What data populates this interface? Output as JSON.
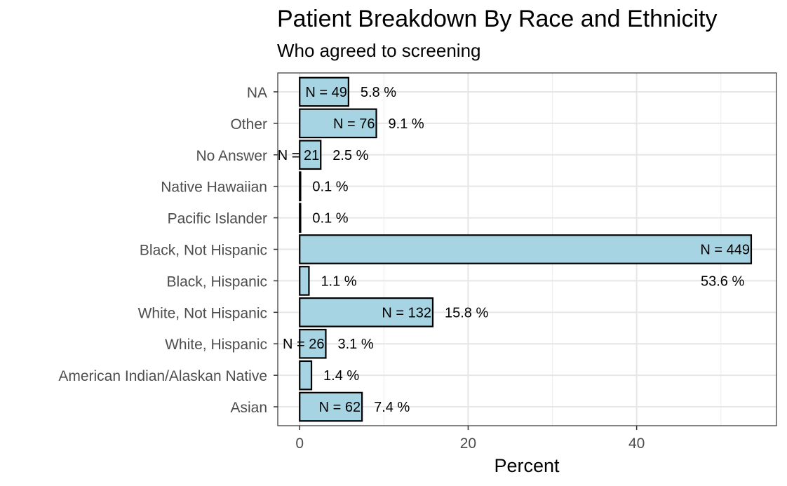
{
  "chart_data": {
    "type": "bar",
    "orientation": "horizontal",
    "title": "Patient Breakdown By Race and Ethnicity",
    "subtitle": "Who agreed to screening",
    "xlabel": "Percent",
    "ylabel": "",
    "xlim": [
      -2.6,
      56.6
    ],
    "xticks": [
      0,
      20,
      40
    ],
    "grid": true,
    "bar_color": "#a6d4e3",
    "bar_outline": "#000000",
    "categories": [
      "NA",
      "Other",
      "No Answer",
      "Native Hawaiian",
      "Pacific Islander",
      "Black, Not Hispanic",
      "Black, Hispanic",
      "White, Not Hispanic",
      "White, Hispanic",
      "American Indian/Alaskan Native",
      "Asian"
    ],
    "values": [
      5.8,
      9.1,
      2.5,
      0.1,
      0.1,
      53.6,
      1.1,
      15.8,
      3.1,
      1.4,
      7.4
    ],
    "n_labels": [
      "N = 49",
      "N = 76",
      "N = 21",
      "",
      "",
      "N = 449",
      "",
      "N = 132",
      "N = 26",
      "",
      "N = 62"
    ],
    "pct_labels": [
      "5.8 %",
      "9.1 %",
      "2.5 %",
      "0.1 %",
      "0.1 %",
      "53.6 %",
      "1.1 %",
      "15.8 %",
      "3.1 %",
      "1.4 %",
      "7.4 %"
    ]
  }
}
